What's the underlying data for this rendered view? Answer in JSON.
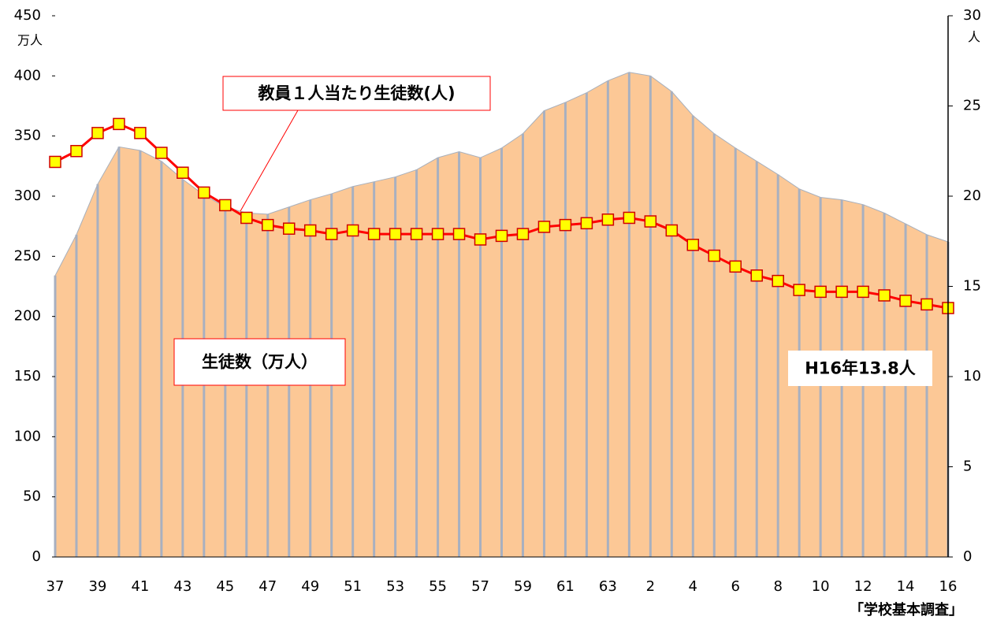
{
  "chart_data": {
    "type": "area",
    "categories": [
      "37",
      null,
      "39",
      null,
      "41",
      null,
      "43",
      null,
      "45",
      null,
      "47",
      null,
      "49",
      null,
      "51",
      null,
      "53",
      null,
      "55",
      null,
      "57",
      null,
      "59",
      null,
      "61",
      null,
      "63",
      null,
      "2",
      null,
      "4",
      null,
      "6",
      null,
      "8",
      null,
      "10",
      null,
      "12",
      null,
      "14",
      null,
      "16"
    ],
    "series": [
      {
        "name": "生徒数（万人）",
        "type": "area",
        "color": "#fcc896",
        "values": [
          234,
          268,
          310,
          341,
          338,
          329,
          314,
          301,
          291,
          286,
          285,
          291,
          297,
          302,
          308,
          312,
          316,
          322,
          332,
          337,
          332,
          340,
          352,
          371,
          378,
          386,
          396,
          403,
          400,
          387,
          367,
          352,
          340,
          329,
          318,
          306,
          299,
          297,
          293,
          286,
          277,
          268,
          262
        ]
      },
      {
        "name": "教員１人当たり生徒数(人)",
        "type": "line",
        "axis": "y2",
        "color": "#ff0000",
        "values": [
          21.9,
          22.5,
          23.5,
          24.0,
          23.5,
          22.4,
          21.3,
          20.2,
          19.5,
          18.8,
          18.4,
          18.2,
          18.1,
          17.9,
          18.1,
          17.9,
          17.9,
          17.9,
          17.9,
          17.9,
          17.6,
          17.8,
          17.9,
          18.3,
          18.4,
          18.5,
          18.7,
          18.8,
          18.6,
          18.1,
          17.3,
          16.7,
          16.1,
          15.6,
          15.3,
          14.8,
          14.7,
          14.7,
          14.7,
          14.5,
          14.2,
          14.0,
          13.8
        ]
      }
    ],
    "ylim": [
      0,
      450
    ],
    "yticks": [
      0,
      50,
      100,
      150,
      200,
      250,
      300,
      350,
      400,
      450
    ],
    "y2lim": [
      0,
      30
    ],
    "y2ticks": [
      0,
      5,
      10,
      15,
      20,
      25,
      30
    ],
    "y_unit": "万人",
    "y2_unit": "人",
    "annotation": "H16年13.8人",
    "source": "「学校基本調査」"
  }
}
